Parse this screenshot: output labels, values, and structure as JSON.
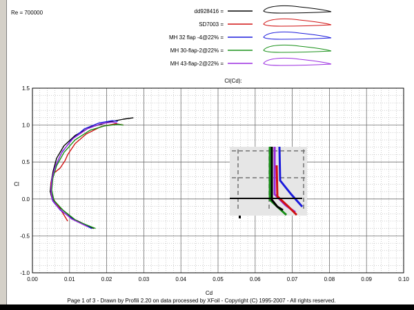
{
  "header": {
    "reynolds": "Re = 700000",
    "legend": [
      {
        "label": "dd928416 =",
        "color": "#000000"
      },
      {
        "label": "SD7003 =",
        "color": "#d01010"
      },
      {
        "label": "MH 32 flap -4@22% =",
        "color": "#1a1adc"
      },
      {
        "label": "MH 30-flap-2@22% =",
        "color": "#189018"
      },
      {
        "label": "MH 43-flap-2@22% =",
        "color": "#9a2ae0"
      }
    ]
  },
  "footer": {
    "text": "Page 1 of 3   -   Drawn by Profili 2.20 on data processed by  XFoil - Copyright (C) 1995-2007 - All rights reserved."
  },
  "chart_data": {
    "type": "line",
    "title": "Cl(Cd):",
    "xlabel": "Cd",
    "ylabel": "Cl",
    "xlim": [
      0,
      0.1
    ],
    "ylim": [
      -1.0,
      1.5
    ],
    "x_ticks": [
      "0.00",
      "0.01",
      "0.02",
      "0.03",
      "0.04",
      "0.05",
      "0.06",
      "0.07",
      "0.08",
      "0.09",
      "0.10"
    ],
    "y_ticks": [
      "1.5",
      "1.0",
      "0.5",
      "0.0",
      "-0.5",
      "-1.0"
    ],
    "grid": true,
    "series": [
      {
        "name": "dd928416",
        "color": "#000000",
        "x": [
          0.0165,
          0.011,
          0.0075,
          0.0053,
          0.0048,
          0.005,
          0.0056,
          0.0065,
          0.0085,
          0.0115,
          0.0155,
          0.0205,
          0.0245,
          0.0272
        ],
        "y": [
          -0.4,
          -0.27,
          -0.12,
          0.0,
          0.1,
          0.22,
          0.38,
          0.55,
          0.72,
          0.86,
          0.97,
          1.04,
          1.08,
          1.1
        ]
      },
      {
        "name": "SD7003",
        "color": "#d01010",
        "x": [
          0.0095,
          0.0078,
          0.006,
          0.005,
          0.005,
          0.0058,
          0.0075,
          0.0088,
          0.0095,
          0.0115,
          0.0145,
          0.0185,
          0.0225,
          0.0245
        ],
        "y": [
          -0.3,
          -0.16,
          -0.03,
          0.08,
          0.22,
          0.35,
          0.42,
          0.52,
          0.6,
          0.75,
          0.88,
          0.98,
          1.02,
          1.0
        ]
      },
      {
        "name": "MH 32 flap -4@22%",
        "color": "#1a1adc",
        "x": [
          0.016,
          0.011,
          0.0075,
          0.0055,
          0.005,
          0.0052,
          0.006,
          0.0078,
          0.0105,
          0.014,
          0.018,
          0.0215,
          0.023
        ],
        "y": [
          -0.4,
          -0.28,
          -0.15,
          -0.03,
          0.1,
          0.25,
          0.42,
          0.62,
          0.8,
          0.95,
          1.03,
          1.06,
          1.05
        ]
      },
      {
        "name": "MH 30-flap-2@22%",
        "color": "#189018",
        "x": [
          0.017,
          0.012,
          0.0082,
          0.0058,
          0.0052,
          0.0055,
          0.0065,
          0.0085,
          0.0115,
          0.0155,
          0.0195,
          0.023,
          0.0245
        ],
        "y": [
          -0.4,
          -0.3,
          -0.15,
          -0.02,
          0.12,
          0.28,
          0.45,
          0.63,
          0.8,
          0.93,
          0.99,
          1.01,
          1.0
        ]
      },
      {
        "name": "MH 43-flap-2@22%",
        "color": "#9a2ae0",
        "x": [
          0.015,
          0.0105,
          0.0072,
          0.0053,
          0.005,
          0.0053,
          0.0062,
          0.008,
          0.011,
          0.0148,
          0.0185,
          0.0215,
          0.0228
        ],
        "y": [
          -0.38,
          -0.27,
          -0.13,
          -0.01,
          0.12,
          0.28,
          0.45,
          0.64,
          0.82,
          0.95,
          1.02,
          1.04,
          1.03
        ]
      }
    ]
  }
}
